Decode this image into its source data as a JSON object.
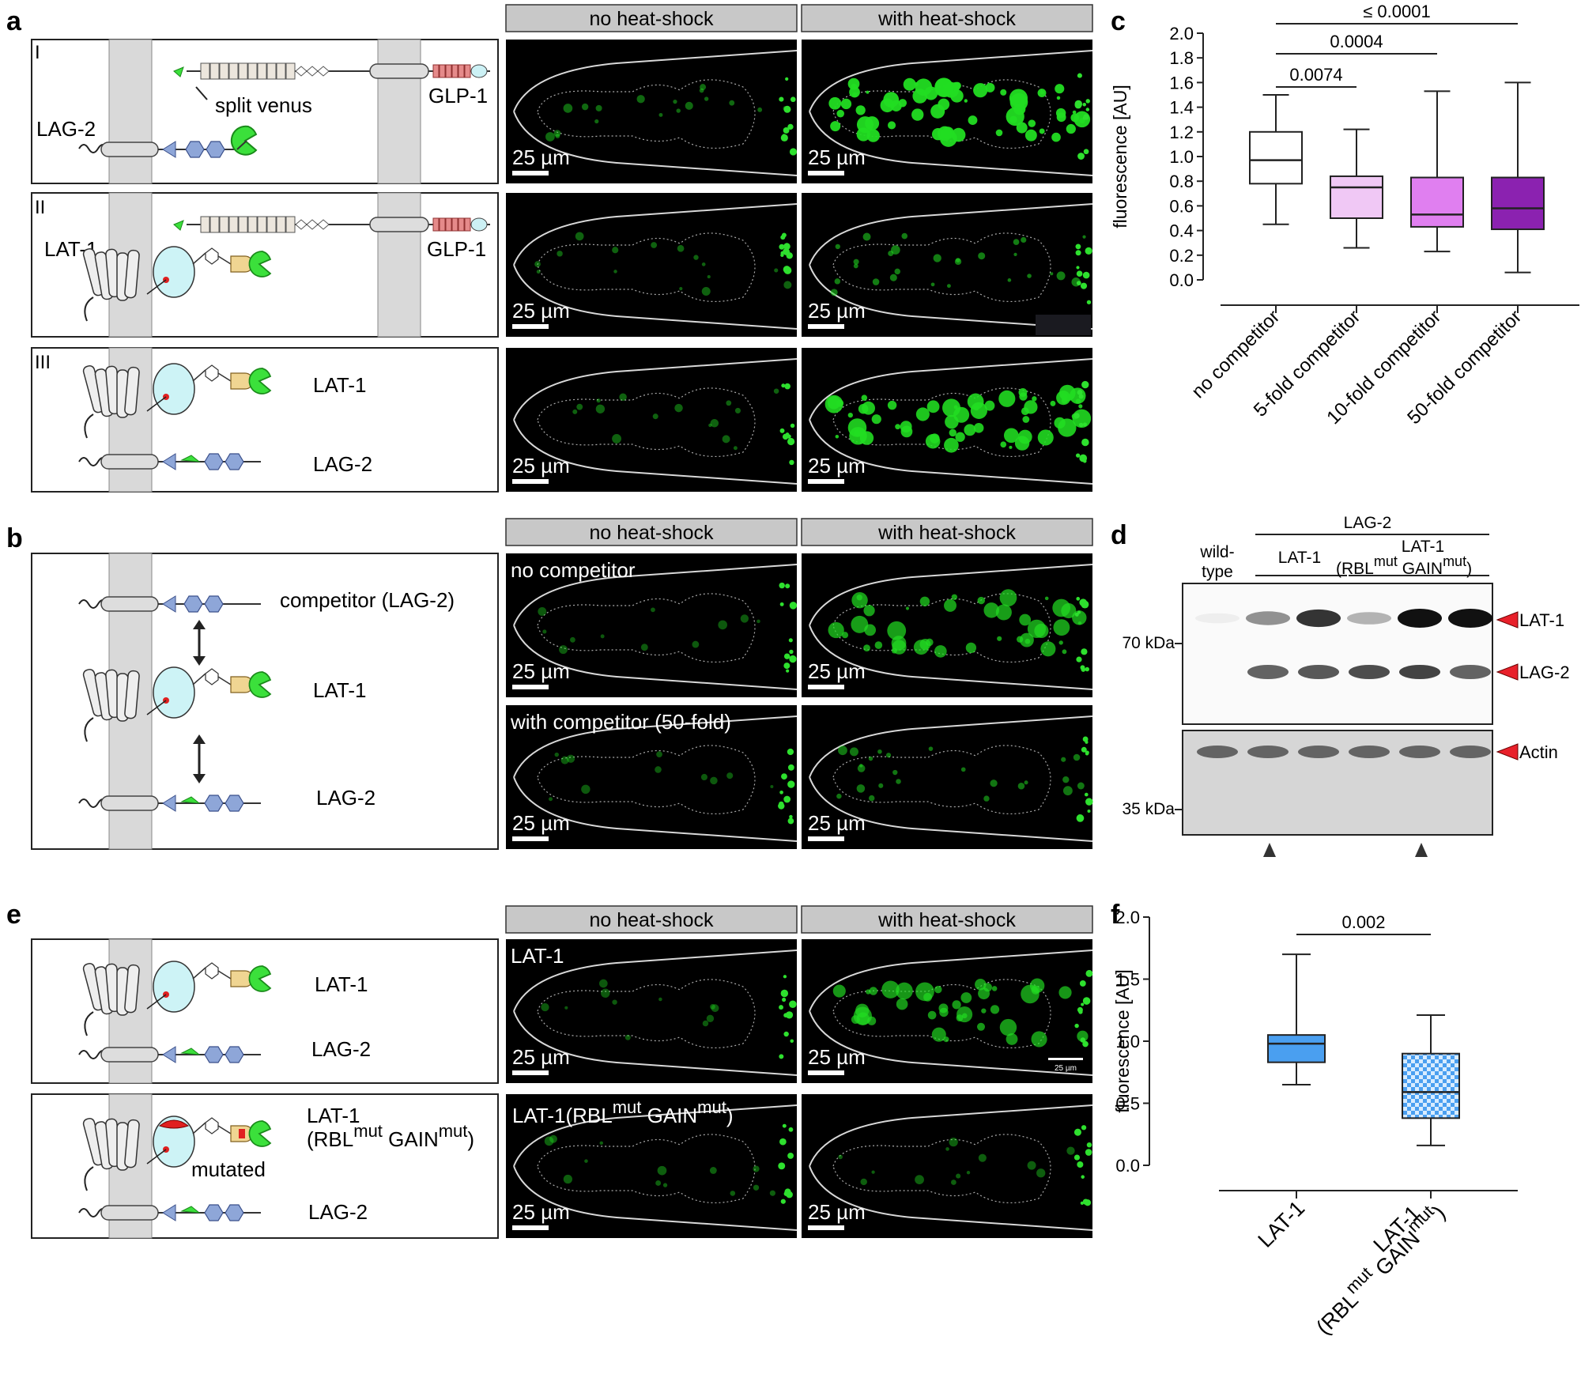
{
  "panel_letters": {
    "a": "a",
    "b": "b",
    "c": "c",
    "d": "d",
    "e": "e",
    "f": "f"
  },
  "headers": {
    "no_hs": "no heat-shock",
    "with_hs": "with heat-shock"
  },
  "scale_bar": "25 µm",
  "scale_bar_small": "25 µm",
  "panel_a": {
    "rows": [
      "I",
      "II",
      "III"
    ],
    "split_venus": "split venus",
    "glp1": "GLP-1",
    "lag2": "LAG-2",
    "lat1": "LAT-1"
  },
  "panel_b": {
    "competitor": "competitor (LAG-2)",
    "lat1": "LAT-1",
    "lag2": "LAG-2",
    "no_competitor": "no competitor",
    "with_competitor": "with competitor (50-fold)"
  },
  "panel_e": {
    "lat1": "LAT-1",
    "lag2": "LAG-2",
    "lat1_mut_line1": "LAT-1",
    "mut_rbl": "(RBL",
    "mut_sup": "mut",
    "mut_gain": " GAIN",
    "mut_close": ")",
    "mutated": "mutated",
    "img_label_1": "LAT-1",
    "img_label_2_a": "LAT-1(RBL",
    "img_label_2_b": " GAIN",
    "img_label_2_c": ")"
  },
  "panel_d": {
    "wild_type_1": "wild-",
    "wild_type_2": "type",
    "lag2": "LAG-2",
    "lat1": "LAT-1",
    "lat1_mut": "LAT-1",
    "rbl": "(RBL",
    "gain": " GAIN",
    "sup": "mut",
    "close": ")",
    "kda70": "70 kDa",
    "kda35": "35 kDa",
    "band_lat1": "LAT-1",
    "band_lag2": "LAG-2",
    "band_actin": "Actin"
  },
  "chart_data": [
    {
      "type": "box",
      "panel": "c",
      "ylabel": "fluorescence [AU]",
      "ylim": [
        0,
        2.0
      ],
      "yticks": [
        "0.0",
        "0.2",
        "0.4",
        "0.6",
        "0.8",
        "1.0",
        "1.2",
        "1.4",
        "1.6",
        "1.8",
        "2.0"
      ],
      "categories": [
        "no competitor",
        "5-fold competitor",
        "10-fold competitor",
        "50-fold competitor"
      ],
      "boxes": [
        {
          "min": 0.45,
          "q1": 0.78,
          "median": 0.97,
          "q3": 1.2,
          "max": 1.5,
          "color": "#ffffff"
        },
        {
          "min": 0.26,
          "q1": 0.5,
          "median": 0.75,
          "q3": 0.84,
          "max": 1.22,
          "color": "#f0c8f5"
        },
        {
          "min": 0.23,
          "q1": 0.43,
          "median": 0.53,
          "q3": 0.83,
          "max": 1.53,
          "color": "#e07ff0"
        },
        {
          "min": 0.06,
          "q1": 0.41,
          "median": 0.58,
          "q3": 0.83,
          "max": 1.6,
          "color": "#8b22b0"
        }
      ],
      "annotations": [
        {
          "from": 0,
          "to": 1,
          "label": "0.0074"
        },
        {
          "from": 0,
          "to": 2,
          "label": "0.0004"
        },
        {
          "from": 0,
          "to": 3,
          "label": "≤ 0.0001"
        }
      ]
    },
    {
      "type": "box",
      "panel": "f",
      "ylabel": "fluorescence [AU]",
      "ylim": [
        0,
        2.0
      ],
      "yticks": [
        "0.0",
        "0.5",
        "1.0",
        "1.5",
        "2.0"
      ],
      "categories": [
        "LAT-1",
        "LAT-1 (RBL mut GAIN mut)"
      ],
      "cat2_line1": "LAT-1",
      "cat2_rbl": "(RBL",
      "cat2_gain": " GAIN",
      "cat2_sup": "mut",
      "cat2_close": ")",
      "boxes": [
        {
          "min": 0.65,
          "q1": 0.83,
          "median": 0.98,
          "q3": 1.05,
          "max": 1.7,
          "color": "#4a9ff0"
        },
        {
          "min": 0.16,
          "q1": 0.38,
          "median": 0.59,
          "q3": 0.9,
          "max": 1.21,
          "color": "checker"
        }
      ],
      "annotations": [
        {
          "from": 0,
          "to": 1,
          "label": "0.002"
        }
      ]
    }
  ]
}
